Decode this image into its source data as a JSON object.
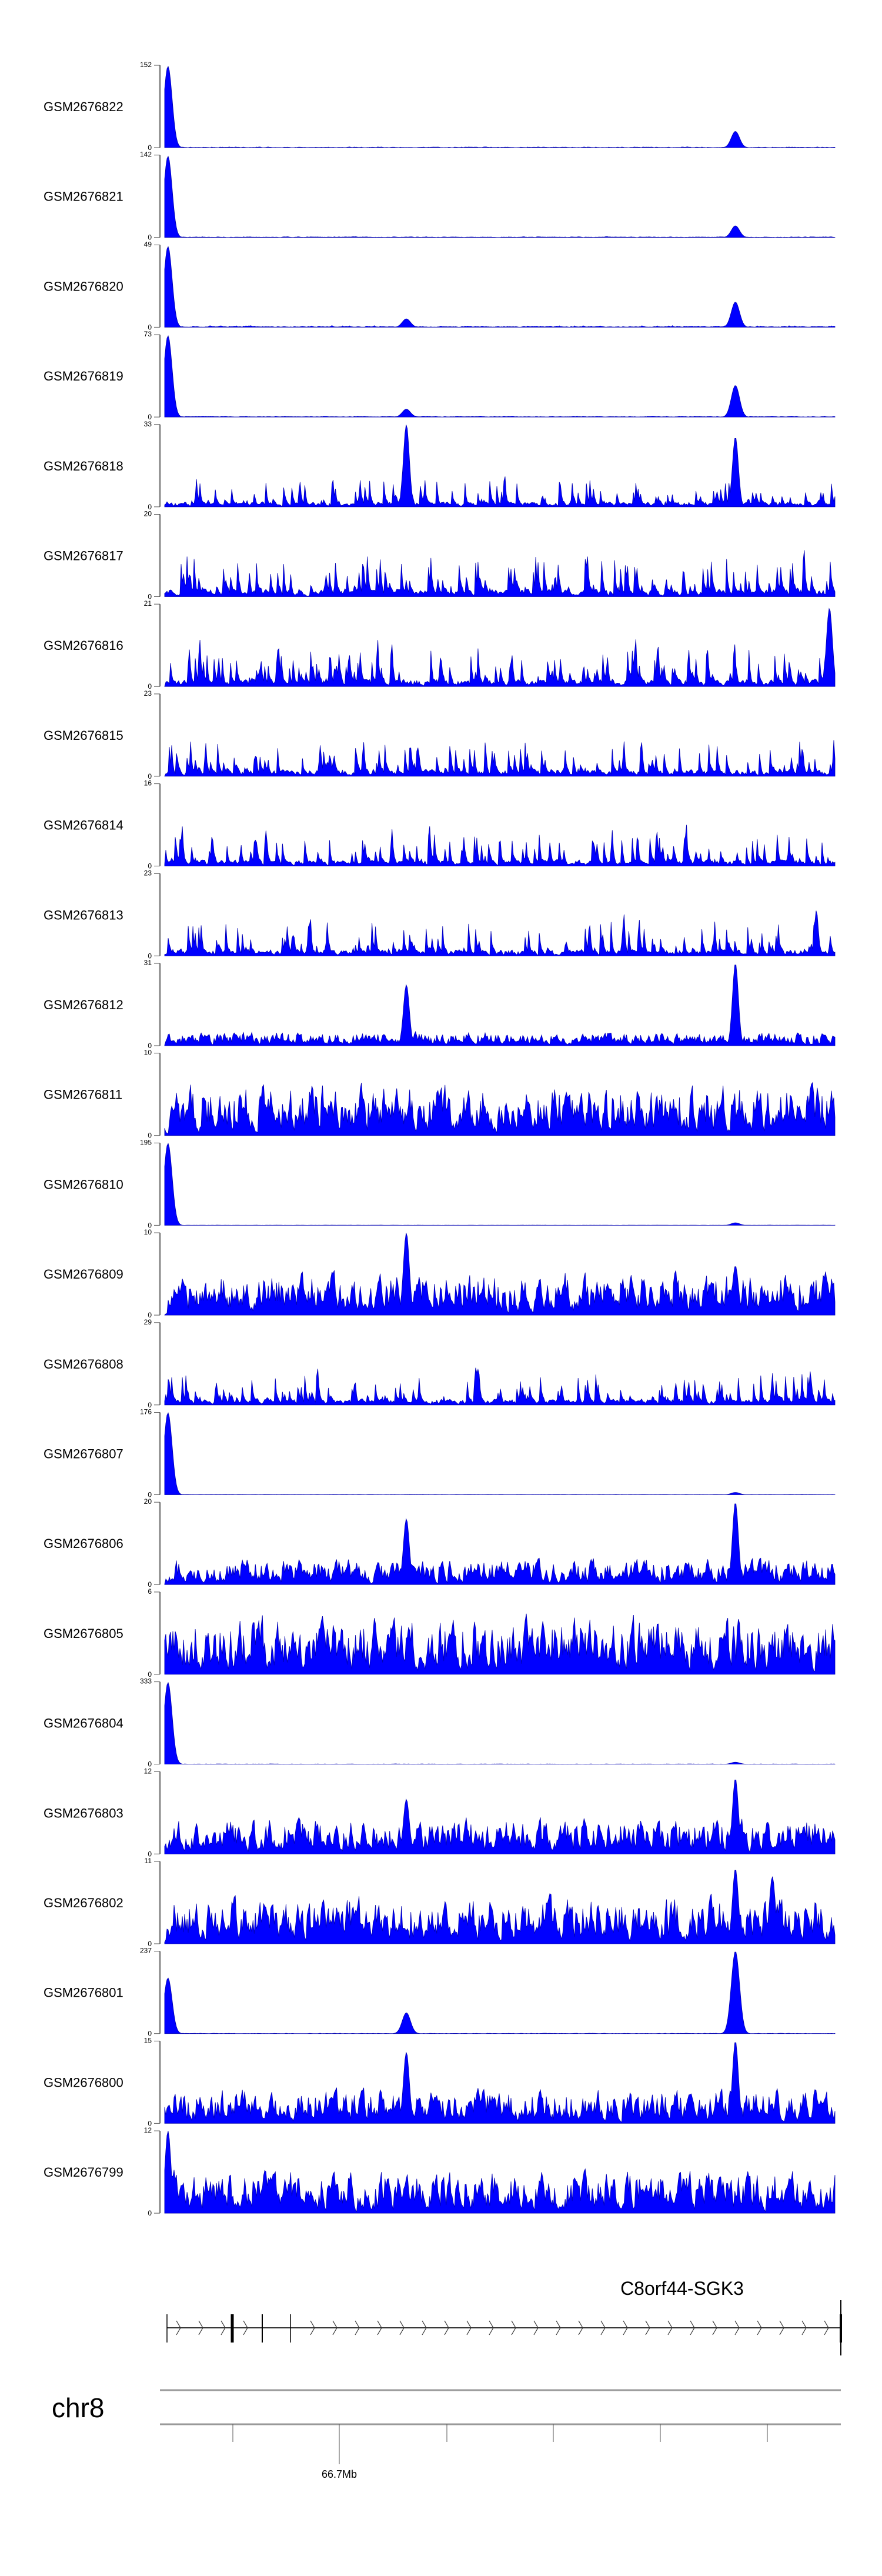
{
  "chart_data": {
    "type": "area",
    "title": "",
    "fill_color": "#0000ff",
    "x_axis": {
      "chromosome": "chr8",
      "tick_label": "66.7Mb"
    },
    "gene": {
      "name": "C8orf44-SGK3",
      "strand": "+"
    },
    "tracks": [
      {
        "name": "GSM2676822",
        "ymax": 152,
        "style": "sharp",
        "noise": 2,
        "peaks": [
          [
            0.005,
            150
          ],
          [
            0.85,
            30
          ]
        ]
      },
      {
        "name": "GSM2676821",
        "ymax": 142,
        "style": "sharp",
        "noise": 2,
        "peaks": [
          [
            0.005,
            140
          ],
          [
            0.85,
            20
          ]
        ]
      },
      {
        "name": "GSM2676820",
        "ymax": 49,
        "style": "sharp",
        "noise": 1.5,
        "peaks": [
          [
            0.005,
            48
          ],
          [
            0.36,
            5
          ],
          [
            0.85,
            15
          ]
        ]
      },
      {
        "name": "GSM2676819",
        "ymax": 73,
        "style": "sharp",
        "noise": 1.5,
        "peaks": [
          [
            0.005,
            72
          ],
          [
            0.36,
            7
          ],
          [
            0.85,
            28
          ]
        ]
      },
      {
        "name": "GSM2676818",
        "ymax": 33,
        "style": "spiky",
        "noise": 10,
        "peaks": [
          [
            0.36,
            33
          ],
          [
            0.85,
            28
          ]
        ]
      },
      {
        "name": "GSM2676817",
        "ymax": 20,
        "style": "spiky",
        "noise": 9,
        "peaks": []
      },
      {
        "name": "GSM2676816",
        "ymax": 21,
        "style": "spiky",
        "noise": 9,
        "peaks": [
          [
            0.99,
            20
          ]
        ]
      },
      {
        "name": "GSM2676815",
        "ymax": 23,
        "style": "spiky",
        "noise": 9,
        "peaks": []
      },
      {
        "name": "GSM2676814",
        "ymax": 16,
        "style": "spiky",
        "noise": 6,
        "peaks": []
      },
      {
        "name": "GSM2676813",
        "ymax": 23,
        "style": "spiky",
        "noise": 9,
        "peaks": []
      },
      {
        "name": "GSM2676812",
        "ymax": 31,
        "style": "dense",
        "noise": 5,
        "peaks": [
          [
            0.36,
            23
          ],
          [
            0.85,
            31
          ]
        ]
      },
      {
        "name": "GSM2676811",
        "ymax": 10,
        "style": "dense",
        "noise": 6,
        "peaks": []
      },
      {
        "name": "GSM2676810",
        "ymax": 195,
        "style": "sharp",
        "noise": 1,
        "peaks": [
          [
            0.005,
            194
          ],
          [
            0.85,
            6
          ]
        ]
      },
      {
        "name": "GSM2676809",
        "ymax": 10,
        "style": "dense",
        "noise": 5,
        "peaks": [
          [
            0.36,
            10
          ],
          [
            0.85,
            6
          ]
        ]
      },
      {
        "name": "GSM2676808",
        "ymax": 29,
        "style": "spiky",
        "noise": 10,
        "peaks": []
      },
      {
        "name": "GSM2676807",
        "ymax": 176,
        "style": "sharp",
        "noise": 1,
        "peaks": [
          [
            0.005,
            175
          ],
          [
            0.85,
            5
          ]
        ]
      },
      {
        "name": "GSM2676806",
        "ymax": 20,
        "style": "dense",
        "noise": 6,
        "peaks": [
          [
            0.36,
            16
          ],
          [
            0.85,
            20
          ]
        ]
      },
      {
        "name": "GSM2676805",
        "ymax": 6,
        "style": "dense",
        "noise": 4,
        "peaks": []
      },
      {
        "name": "GSM2676804",
        "ymax": 333,
        "style": "sharp",
        "noise": 2,
        "peaks": [
          [
            0.005,
            330
          ],
          [
            0.85,
            8
          ]
        ]
      },
      {
        "name": "GSM2676803",
        "ymax": 12,
        "style": "dense",
        "noise": 5,
        "peaks": [
          [
            0.36,
            8
          ],
          [
            0.85,
            11
          ]
        ]
      },
      {
        "name": "GSM2676802",
        "ymax": 11,
        "style": "dense",
        "noise": 6,
        "peaks": [
          [
            0.85,
            10
          ],
          [
            0.905,
            9
          ]
        ]
      },
      {
        "name": "GSM2676801",
        "ymax": 237,
        "style": "sharp",
        "noise": 1.5,
        "peaks": [
          [
            0.005,
            160
          ],
          [
            0.36,
            60
          ],
          [
            0.85,
            237
          ]
        ]
      },
      {
        "name": "GSM2676800",
        "ymax": 15,
        "style": "dense",
        "noise": 6,
        "peaks": [
          [
            0.36,
            13
          ],
          [
            0.85,
            15
          ]
        ]
      },
      {
        "name": "GSM2676799",
        "ymax": 12,
        "style": "dense",
        "noise": 6,
        "peaks": [
          [
            0.005,
            12
          ]
        ]
      }
    ]
  }
}
